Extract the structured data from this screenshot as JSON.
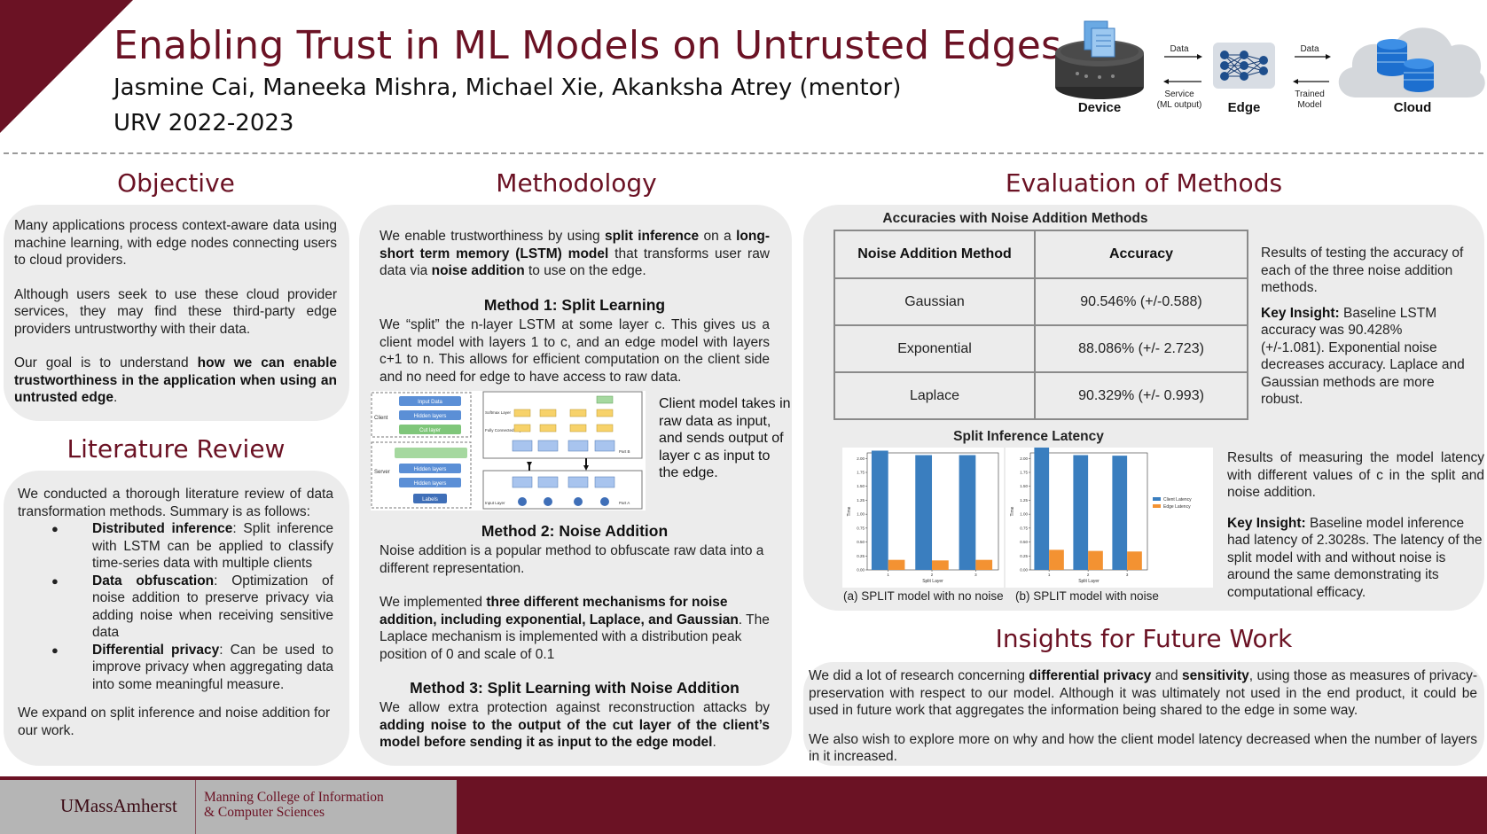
{
  "header": {
    "title": "Enabling Trust in ML Models on Untrusted Edges",
    "authors": "Jasmine Cai, Maneeka Mishra, Michael Xie, Akanksha Atrey (mentor)",
    "term": "URV 2022-2023"
  },
  "diagram": {
    "device_label": "Device",
    "edge_label": "Edge",
    "cloud_label": "Cloud",
    "data_label_1": "Data",
    "service_label_1": "Service",
    "service_label_2": "(ML output)",
    "data_label_2": "Data",
    "trained_label_1": "Trained",
    "trained_label_2": "Model"
  },
  "objective": {
    "heading": "Objective",
    "p1": "Many applications process context-aware data using machine learning, with edge nodes connecting users to cloud providers.",
    "p2": "Although users seek to use these cloud provider services, they may find these third-party edge providers untrustworthy with their data.",
    "p3_pre": "Our goal is to understand ",
    "p3_bold": "how we can enable trustworthiness in the application when using an untrusted edge",
    "p3_post": "."
  },
  "literature": {
    "heading": "Literature Review",
    "intro": "We conducted a thorough literature review of data transformation methods. Summary is as follows:",
    "items": [
      {
        "term": "Distributed inference",
        "text": ": Split inference with LSTM can be applied to classify time-series data with multiple clients"
      },
      {
        "term": "Data obfuscation",
        "text": ": Optimization of noise addition to preserve privacy via adding noise when receiving sensitive data"
      },
      {
        "term": "Differential privacy",
        "text": ": Can be used to improve privacy when aggregating data into some meaningful measure."
      }
    ],
    "outro": "We expand on split inference and noise addition for our work."
  },
  "methodology": {
    "heading": "Methodology",
    "intro_1": "We enable trustworthiness by using ",
    "intro_b1": "split inference",
    "intro_2": " on a ",
    "intro_b2": "long-short term memory (LSTM) model",
    "intro_3": " that  transforms user raw data via ",
    "intro_b3": "noise addition",
    "intro_4": " to use on the edge.",
    "m1_title": "Method 1: Split Learning",
    "m1_text": "We “split” the n-layer LSTM at some layer c. This gives us a client model with layers 1 to c, and an edge model with layers c+1 to n. This allows for efficient computation on the client side and no need for edge to have access to raw data.",
    "fig_caption": "Client model takes in raw data as input, and sends output of layer c as input to the edge.",
    "fig_labels": {
      "input_data": "Input Data",
      "hidden_layers": "Hidden layers",
      "cut_layer": "Cut layer",
      "labels": "Labels",
      "client": "Client",
      "server": "Server",
      "softmax": "Softmax",
      "fc": "FC",
      "lstm_cell": "LSTM Cell",
      "output": "Output",
      "softmax_layer": "Softmax Layer",
      "fc_layer": "Fully Connected Layer",
      "input_layer": "Input Layer",
      "part_b": "Part B",
      "part_a": "Part A"
    },
    "m2_title": "Method 2: Noise Addition",
    "m2_p1": "Noise addition is a popular method to obfuscate raw data into a different representation.",
    "m2_p2_pre": "We implemented ",
    "m2_p2_bold": "three different mechanisms for noise addition, including exponential, Laplace, and Gaussian",
    "m2_p2_post": ". The Laplace mechanism is implemented with a distribution peak position of 0 and scale of 0.1",
    "m3_title": "Method 3: Split Learning with Noise Addition",
    "m3_pre": "We allow extra protection against reconstruction attacks by ",
    "m3_bold": "adding noise to the output of the cut layer of the client’s model before sending it as input to the edge model",
    "m3_post": "."
  },
  "evaluation": {
    "heading": "Evaluation of Methods",
    "table_title": "Accuracies with Noise Addition Methods",
    "columns": [
      "Noise Addition Method",
      "Accuracy"
    ],
    "rows": [
      [
        "Gaussian",
        "90.546% (+/-0.588)"
      ],
      [
        "Exponential",
        "88.086% (+/- 2.723)"
      ],
      [
        "Laplace",
        "90.329% (+/- 0.993)"
      ]
    ],
    "table_note": "Results of testing the accuracy of each of the three noise addition methods.",
    "key1_label": "Key Insight:",
    "key1_text": " Baseline LSTM accuracy was 90.428% (+/-1.081). Exponential noise decreases accuracy. Laplace and Gaussian methods are more robust.",
    "latency_title": "Split Inference Latency",
    "latency_note": "Results of measuring the model latency with different values of c in the split and noise addition.",
    "key2_label": "Key Insight:",
    "key2_text": " Baseline model inference had latency of 2.3028s. The latency of the split model with and without noise is around the same demonstrating its computational efficacy.",
    "caption_a": "(a) SPLIT model with no noise",
    "caption_b": "(b) SPLIT model with noise"
  },
  "future": {
    "heading": "Insights for Future Work",
    "p1_pre": "We did a lot of research concerning ",
    "p1_b1": "differential privacy",
    "p1_mid": " and ",
    "p1_b2": "sensitivity",
    "p1_post": ", using those as measures of privacy-preservation with respect to our model. Although it was ultimately not used in the end product, it could be used in future work that aggregates the information being shared to the edge in some way.",
    "p2": "We also wish to explore more on why and how the client model latency decreased when the number of layers in it increased."
  },
  "footer": {
    "umass": "UMassAmherst",
    "college_1": "Manning College of Information",
    "college_2": "& Computer Sciences"
  },
  "colors": {
    "maroon": "#6b1224",
    "client_bar": "#3a7ebf",
    "edge_bar": "#f39232"
  },
  "chart_data": [
    {
      "type": "bar",
      "title": "(a) SPLIT model with no noise",
      "categories": [
        "1",
        "2",
        "3"
      ],
      "xlabel": "Split Layer",
      "ylabel": "Time",
      "ylim": [
        0,
        2.1
      ],
      "series": [
        {
          "name": "Client Latency",
          "values": [
            2.14,
            2.06,
            2.06
          ]
        },
        {
          "name": "Edge Latency",
          "values": [
            0.18,
            0.17,
            0.18
          ]
        }
      ]
    },
    {
      "type": "bar",
      "title": "(b) SPLIT model with noise",
      "categories": [
        "1",
        "2",
        "3"
      ],
      "xlabel": "Split Layer",
      "ylabel": "Time",
      "ylim": [
        0,
        2.1
      ],
      "legend": "right",
      "series": [
        {
          "name": "Client Latency",
          "values": [
            2.2,
            2.06,
            2.05
          ]
        },
        {
          "name": "Edge Latency",
          "values": [
            0.36,
            0.34,
            0.33
          ]
        }
      ]
    }
  ]
}
